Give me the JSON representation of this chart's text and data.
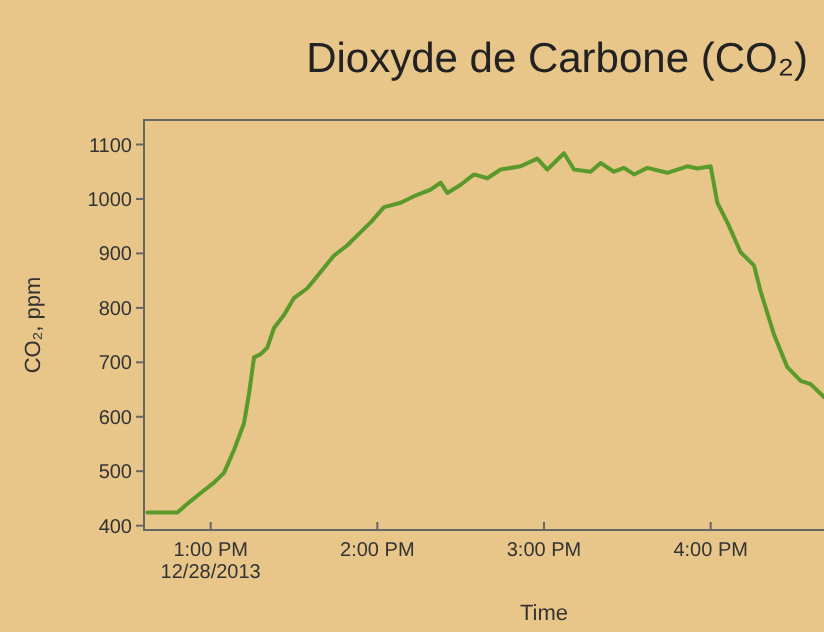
{
  "chart_data": {
    "type": "line",
    "title": "Dioxyde de Carbone (CO₂)",
    "xlabel": "Time",
    "ylabel": "CO₂, ppm",
    "x": [
      12.62,
      12.8,
      12.86,
      12.94,
      13.02,
      13.08,
      13.14,
      13.2,
      13.23,
      13.26,
      13.3,
      13.34,
      13.38,
      13.44,
      13.5,
      13.58,
      13.66,
      13.74,
      13.82,
      13.9,
      13.96,
      14.04,
      14.14,
      14.22,
      14.32,
      14.38,
      14.42,
      14.5,
      14.58,
      14.66,
      14.74,
      14.86,
      14.96,
      15.02,
      15.12,
      15.18,
      15.28,
      15.34,
      15.42,
      15.48,
      15.54,
      15.62,
      15.74,
      15.86,
      15.92,
      16.0,
      16.04,
      16.1,
      16.18,
      16.26,
      16.3,
      16.38,
      16.46,
      16.54,
      16.6,
      16.68
    ],
    "series": [
      {
        "color": "#5a9a2a",
        "values": [
          424,
          424,
          440,
          460,
          479,
          497,
          539,
          588,
          642,
          709,
          715,
          727,
          763,
          787,
          818,
          836,
          866,
          896,
          915,
          939,
          957,
          985,
          993,
          1005,
          1017,
          1030,
          1011,
          1026,
          1045,
          1038,
          1054,
          1060,
          1074,
          1054,
          1084,
          1054,
          1050,
          1066,
          1050,
          1057,
          1045,
          1057,
          1048,
          1060,
          1056,
          1060,
          993,
          957,
          902,
          878,
          830,
          751,
          691,
          666,
          660,
          636
        ]
      }
    ],
    "xlim": [
      12.6,
      16.68
    ],
    "ylim": [
      392,
      1145
    ],
    "xticks": [
      {
        "value": 13,
        "label": "1:00 PM\n12/28/2013"
      },
      {
        "value": 14,
        "label": "2:00 PM"
      },
      {
        "value": 15,
        "label": "3:00 PM"
      },
      {
        "value": 16,
        "label": "4:00 PM"
      }
    ],
    "yticks": [
      400,
      500,
      600,
      700,
      800,
      900,
      1000,
      1100
    ],
    "grid": false,
    "marker": "none",
    "line_style": "solid"
  }
}
